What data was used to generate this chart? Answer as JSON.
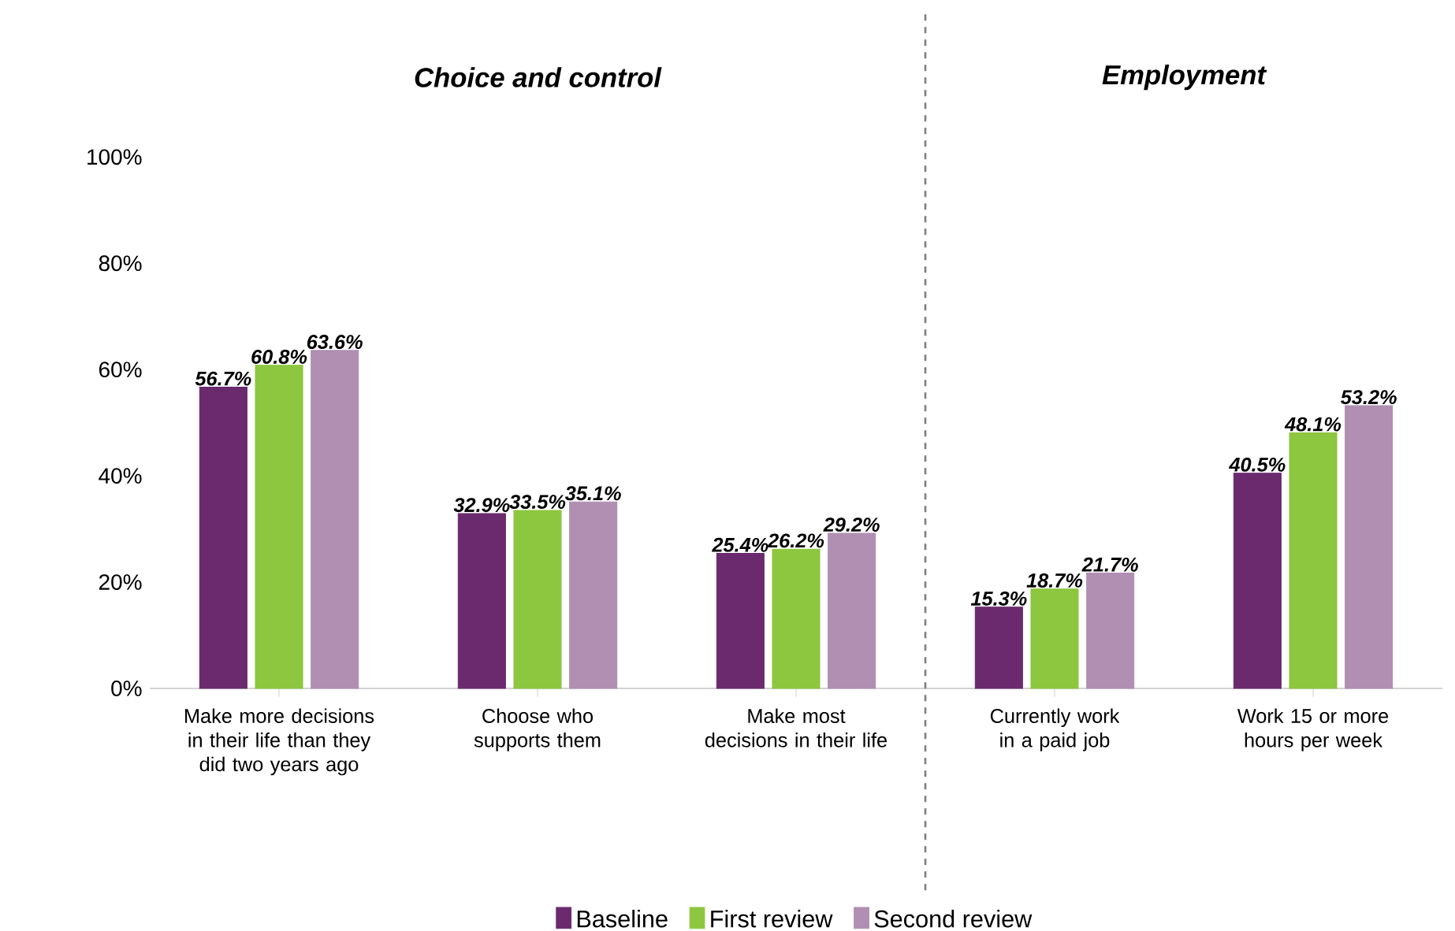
{
  "chart_data": {
    "type": "bar",
    "categories": [
      "Make more decisions in their life than they did two years ago",
      "Choose who supports them",
      "Make most decisions in their life",
      "Currently work in a paid job",
      "Work 15 or more hours per week"
    ],
    "series": [
      {
        "name": "Baseline",
        "color": "#6b2a6e",
        "values": [
          56.7,
          32.9,
          25.4,
          15.3,
          40.5
        ],
        "value_labels": [
          "56.7%",
          "32.9%",
          "25.4%",
          "15.3%",
          "40.5%"
        ]
      },
      {
        "name": "First review",
        "color": "#8dc63f",
        "values": [
          60.8,
          33.5,
          26.2,
          18.7,
          48.1
        ],
        "value_labels": [
          "60.8%",
          "33.5%",
          "26.2%",
          "18.7%",
          "48.1%"
        ]
      },
      {
        "name": "Second review",
        "color": "#b08fb2",
        "values": [
          63.6,
          35.1,
          29.2,
          21.7,
          53.2
        ],
        "value_labels": [
          "63.6%",
          "35.1%",
          "29.2%",
          "21.7%",
          "53.2%"
        ]
      }
    ],
    "ylim": [
      0,
      100
    ],
    "yticks": [
      {
        "value": 0,
        "label": "0%"
      },
      {
        "value": 20,
        "label": "20%"
      },
      {
        "value": 40,
        "label": "40%"
      },
      {
        "value": 60,
        "label": "60%"
      },
      {
        "value": 80,
        "label": "80%"
      },
      {
        "value": 100,
        "label": "100%"
      }
    ],
    "annotations": [
      "Choice and control",
      "Employment"
    ],
    "grid": false,
    "legend": "bottom"
  }
}
